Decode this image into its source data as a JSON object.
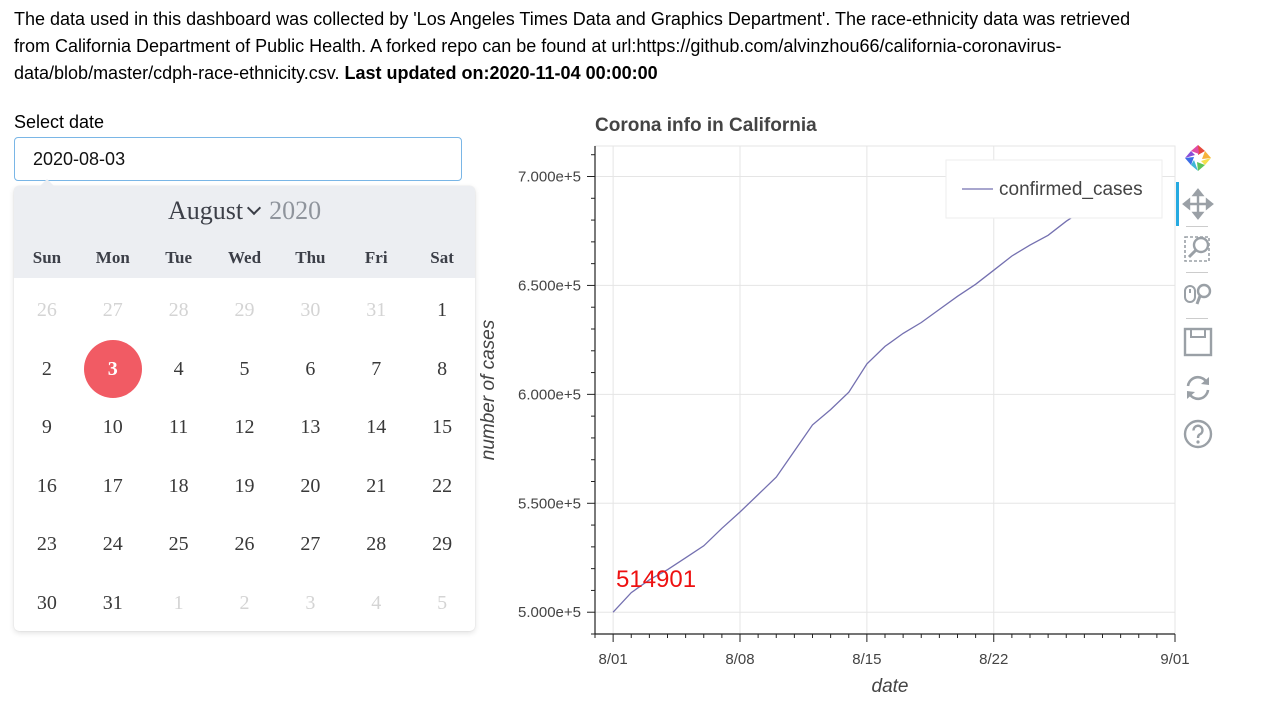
{
  "intro": {
    "text": "The data used in this dashboard was collected by 'Los Angeles Times Data and Graphics Department'. The race-ethnicity data was retrieved from California Department of Public Health. A forked repo can be found at url:https://github.com/alvinzhou66/california-coronavirus-data/blob/master/cdph-race-ethnicity.csv.",
    "updated": "Last updated on:2020-11-04 00:00:00"
  },
  "date_picker": {
    "label": "Select date",
    "value": "2020-08-03",
    "month": "August",
    "year": "2020",
    "weekdays": [
      "Sun",
      "Mon",
      "Tue",
      "Wed",
      "Thu",
      "Fri",
      "Sat"
    ],
    "days": [
      {
        "d": "26",
        "muted": true
      },
      {
        "d": "27",
        "muted": true
      },
      {
        "d": "28",
        "muted": true
      },
      {
        "d": "29",
        "muted": true
      },
      {
        "d": "30",
        "muted": true
      },
      {
        "d": "31",
        "muted": true
      },
      {
        "d": "1"
      },
      {
        "d": "2"
      },
      {
        "d": "3",
        "selected": true
      },
      {
        "d": "4"
      },
      {
        "d": "5"
      },
      {
        "d": "6"
      },
      {
        "d": "7"
      },
      {
        "d": "8"
      },
      {
        "d": "9"
      },
      {
        "d": "10"
      },
      {
        "d": "11"
      },
      {
        "d": "12"
      },
      {
        "d": "13"
      },
      {
        "d": "14"
      },
      {
        "d": "15"
      },
      {
        "d": "16"
      },
      {
        "d": "17"
      },
      {
        "d": "18"
      },
      {
        "d": "19"
      },
      {
        "d": "20"
      },
      {
        "d": "21"
      },
      {
        "d": "22"
      },
      {
        "d": "23"
      },
      {
        "d": "24"
      },
      {
        "d": "25"
      },
      {
        "d": "26"
      },
      {
        "d": "27"
      },
      {
        "d": "28"
      },
      {
        "d": "29"
      },
      {
        "d": "30"
      },
      {
        "d": "31"
      },
      {
        "d": "1",
        "muted": true
      },
      {
        "d": "2",
        "muted": true
      },
      {
        "d": "3",
        "muted": true
      },
      {
        "d": "4",
        "muted": true
      },
      {
        "d": "5",
        "muted": true
      }
    ],
    "selected_color": "#f15b64"
  },
  "toolbar": {
    "tools": [
      "bokeh-logo-icon",
      "pan-icon",
      "box-zoom-icon",
      "wheel-zoom-icon",
      "save-icon",
      "reset-icon",
      "help-icon"
    ]
  },
  "chart_data": {
    "type": "line",
    "title": "Corona info in California",
    "xlabel": "date",
    "ylabel": "number of cases",
    "x_ticks": [
      "8/01",
      "8/08",
      "8/15",
      "8/22",
      "9/01"
    ],
    "y_ticks": [
      "5.000e+5",
      "5.500e+5",
      "6.000e+5",
      "6.500e+5",
      "7.000e+5"
    ],
    "ylim": [
      490000,
      714000
    ],
    "xlim": [
      "2020-07-31",
      "2020-09-01"
    ],
    "grid": true,
    "legend": "top-right",
    "annotation": {
      "text": "514901",
      "color": "#ee1111"
    },
    "series": [
      {
        "name": "confirmed_cases",
        "color": "#7470b0",
        "x": [
          "2020-08-01",
          "2020-08-02",
          "2020-08-03",
          "2020-08-04",
          "2020-08-05",
          "2020-08-06",
          "2020-08-07",
          "2020-08-08",
          "2020-08-09",
          "2020-08-10",
          "2020-08-11",
          "2020-08-12",
          "2020-08-13",
          "2020-08-14",
          "2020-08-15",
          "2020-08-16",
          "2020-08-17",
          "2020-08-18",
          "2020-08-19",
          "2020-08-20",
          "2020-08-21",
          "2020-08-22",
          "2020-08-23",
          "2020-08-24",
          "2020-08-25",
          "2020-08-26",
          "2020-08-27",
          "2020-08-28",
          "2020-08-29",
          "2020-08-30",
          "2020-08-31"
        ],
        "y": [
          500000,
          509000,
          514901,
          519500,
          525000,
          530500,
          538500,
          546000,
          554000,
          562000,
          574000,
          586000,
          593000,
          601000,
          614000,
          622000,
          628000,
          633000,
          639000,
          645000,
          650500,
          657000,
          663500,
          668500,
          673000,
          679500,
          685000,
          690000,
          695000,
          700000,
          705000
        ]
      }
    ]
  }
}
